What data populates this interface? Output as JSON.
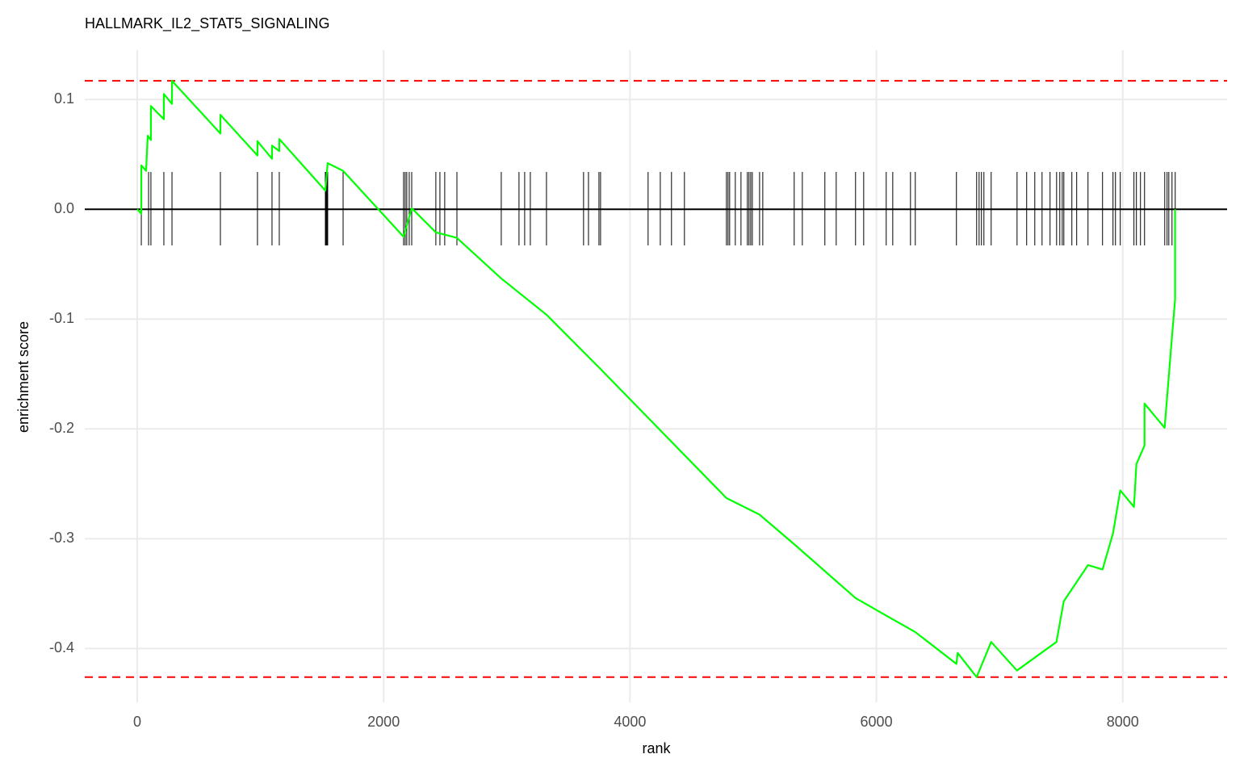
{
  "chart_data": {
    "type": "line",
    "title": "HALLMARK_IL2_STAT5_SIGNALING",
    "x_label": "rank",
    "y_label": "enrichment score",
    "x": [
      0,
      33,
      33,
      72,
      85,
      111,
      111,
      216,
      216,
      282,
      282,
      675,
      675,
      976,
      976,
      1094,
      1094,
      1153,
      1153,
      1527,
      1546,
      1671,
      2162,
      2228,
      2424,
      2594,
      2955,
      3322,
      3748,
      4783,
      5051,
      5333,
      5831,
      6080,
      6316,
      6650,
      6660,
      6814,
      6932,
      7141,
      7462,
      7521,
      7718,
      7836,
      7921,
      7980,
      8091,
      8111,
      8177,
      8177,
      8340,
      8399,
      8425,
      8425
    ],
    "values": [
      0,
      -0.004,
      0.04,
      0.035,
      0.067,
      0.063,
      0.094,
      0.082,
      0.105,
      0.096,
      0.117,
      0.069,
      0.086,
      0.049,
      0.062,
      0.046,
      0.058,
      0.053,
      0.064,
      0.017,
      0.042,
      0.035,
      -0.025,
      0.001,
      -0.021,
      -0.026,
      -0.063,
      -0.096,
      -0.144,
      -0.263,
      -0.278,
      -0.305,
      -0.354,
      -0.37,
      -0.385,
      -0.414,
      -0.404,
      -0.426,
      -0.394,
      -0.42,
      -0.394,
      -0.357,
      -0.324,
      -0.328,
      -0.295,
      -0.256,
      -0.271,
      -0.232,
      -0.215,
      -0.177,
      -0.199,
      -0.117,
      -0.082,
      0
    ],
    "color": "#00ff00",
    "hits": [
      33,
      92,
      111,
      216,
      282,
      675,
      976,
      1094,
      1153,
      1527,
      1533,
      1540,
      1546,
      1671,
      2162,
      2175,
      2188,
      2208,
      2228,
      2424,
      2457,
      2496,
      2595,
      2955,
      3099,
      3145,
      3191,
      3322,
      3623,
      3663,
      3748,
      3761,
      4147,
      4246,
      4337,
      4442,
      4783,
      4796,
      4809,
      4855,
      4901,
      4953,
      4966,
      4980,
      4993,
      5052,
      5078,
      5333,
      5399,
      5582,
      5674,
      5831,
      5897,
      6080,
      6133,
      6277,
      6316,
      6650,
      6814,
      6834,
      6853,
      6873,
      6932,
      7142,
      7220,
      7286,
      7345,
      7410,
      7463,
      7489,
      7509,
      7522,
      7587,
      7626,
      7718,
      7836,
      7921,
      7941,
      7980,
      8091,
      8111,
      8144,
      8177,
      8341,
      8360,
      8374,
      8400,
      8426
    ],
    "hits_color": "#000000",
    "hlines": [
      {
        "value": 0,
        "color": "#000000",
        "dash": false
      },
      {
        "value": 0.117,
        "color": "#ff0000",
        "dash": true
      },
      {
        "value": -0.426,
        "color": "#ff0000",
        "dash": true
      }
    ],
    "xlim": [
      -426,
      8847
    ],
    "ylim": [
      -0.449,
      0.145
    ],
    "xticks": [
      0,
      2000,
      4000,
      6000,
      8000
    ],
    "yticks": [
      0.1,
      {
        "value": 0,
        "label": "0.0"
      },
      -0.1,
      -0.2,
      -0.3,
      -0.4
    ],
    "grid": true
  }
}
